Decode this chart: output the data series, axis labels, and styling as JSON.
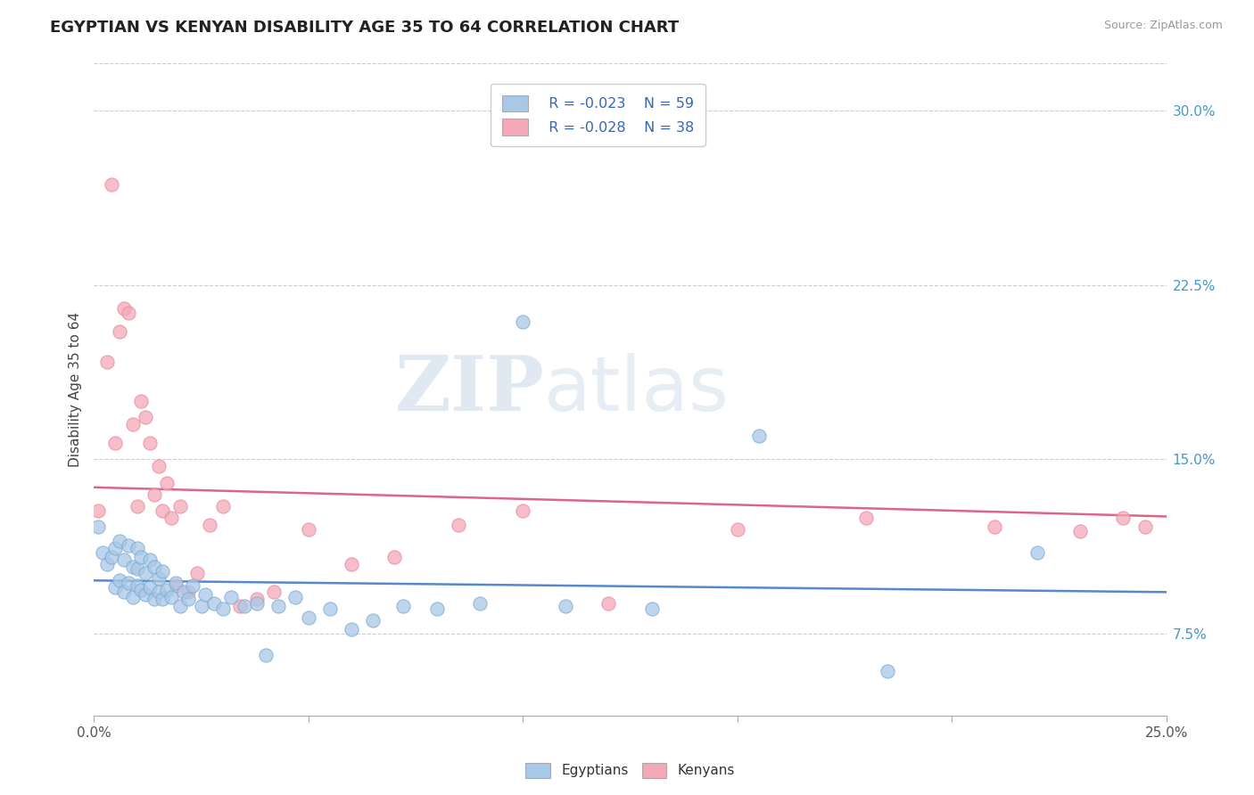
{
  "title": "EGYPTIAN VS KENYAN DISABILITY AGE 35 TO 64 CORRELATION CHART",
  "source": "Source: ZipAtlas.com",
  "ylabel": "Disability Age 35 to 64",
  "xlim": [
    0.0,
    0.25
  ],
  "ylim": [
    0.04,
    0.32
  ],
  "xticks": [
    0.0,
    0.05,
    0.1,
    0.15,
    0.2,
    0.25
  ],
  "xticklabels": [
    "0.0%",
    "",
    "",
    "",
    "",
    "25.0%"
  ],
  "yticks_right": [
    0.075,
    0.15,
    0.225,
    0.3
  ],
  "yticklabels_right": [
    "7.5%",
    "15.0%",
    "22.5%",
    "30.0%"
  ],
  "legend_r1": "R = -0.023",
  "legend_n1": "N = 59",
  "legend_r2": "R = -0.028",
  "legend_n2": "N = 38",
  "watermark_zip": "ZIP",
  "watermark_atlas": "atlas",
  "blue_color": "#a8c8e8",
  "pink_color": "#f4a8b8",
  "blue_line_color": "#5588cc",
  "pink_line_color": "#dd6688",
  "legend_text_color": "#3366bb",
  "blue_edge": "#7aabcf",
  "pink_edge": "#e888a0",
  "egyptians_x": [
    0.001,
    0.002,
    0.003,
    0.004,
    0.005,
    0.005,
    0.006,
    0.006,
    0.007,
    0.007,
    0.008,
    0.008,
    0.009,
    0.009,
    0.01,
    0.01,
    0.01,
    0.011,
    0.011,
    0.012,
    0.012,
    0.013,
    0.013,
    0.014,
    0.014,
    0.015,
    0.015,
    0.016,
    0.016,
    0.017,
    0.018,
    0.019,
    0.02,
    0.021,
    0.022,
    0.023,
    0.025,
    0.026,
    0.028,
    0.03,
    0.032,
    0.035,
    0.038,
    0.04,
    0.043,
    0.047,
    0.05,
    0.055,
    0.06,
    0.065,
    0.072,
    0.08,
    0.09,
    0.1,
    0.11,
    0.13,
    0.155,
    0.185,
    0.22
  ],
  "egyptians_y": [
    0.121,
    0.11,
    0.105,
    0.108,
    0.095,
    0.112,
    0.098,
    0.115,
    0.093,
    0.107,
    0.097,
    0.113,
    0.091,
    0.104,
    0.096,
    0.103,
    0.112,
    0.094,
    0.108,
    0.092,
    0.101,
    0.095,
    0.107,
    0.09,
    0.104,
    0.093,
    0.099,
    0.09,
    0.102,
    0.094,
    0.091,
    0.097,
    0.087,
    0.093,
    0.09,
    0.096,
    0.087,
    0.092,
    0.088,
    0.086,
    0.091,
    0.087,
    0.088,
    0.066,
    0.087,
    0.091,
    0.082,
    0.086,
    0.077,
    0.081,
    0.087,
    0.086,
    0.088,
    0.209,
    0.087,
    0.086,
    0.16,
    0.059,
    0.11
  ],
  "kenyans_x": [
    0.001,
    0.003,
    0.004,
    0.005,
    0.006,
    0.007,
    0.008,
    0.009,
    0.01,
    0.011,
    0.012,
    0.013,
    0.014,
    0.015,
    0.016,
    0.017,
    0.018,
    0.019,
    0.02,
    0.022,
    0.024,
    0.027,
    0.03,
    0.034,
    0.038,
    0.042,
    0.05,
    0.06,
    0.07,
    0.085,
    0.1,
    0.12,
    0.15,
    0.18,
    0.21,
    0.23,
    0.24,
    0.245
  ],
  "kenyans_y": [
    0.128,
    0.192,
    0.268,
    0.157,
    0.205,
    0.215,
    0.213,
    0.165,
    0.13,
    0.175,
    0.168,
    0.157,
    0.135,
    0.147,
    0.128,
    0.14,
    0.125,
    0.096,
    0.13,
    0.093,
    0.101,
    0.122,
    0.13,
    0.087,
    0.09,
    0.093,
    0.12,
    0.105,
    0.108,
    0.122,
    0.128,
    0.088,
    0.12,
    0.125,
    0.121,
    0.119,
    0.125,
    0.121
  ],
  "blue_trend_slope": -0.02,
  "blue_trend_intercept": 0.098,
  "pink_trend_slope": -0.05,
  "pink_trend_intercept": 0.138
}
